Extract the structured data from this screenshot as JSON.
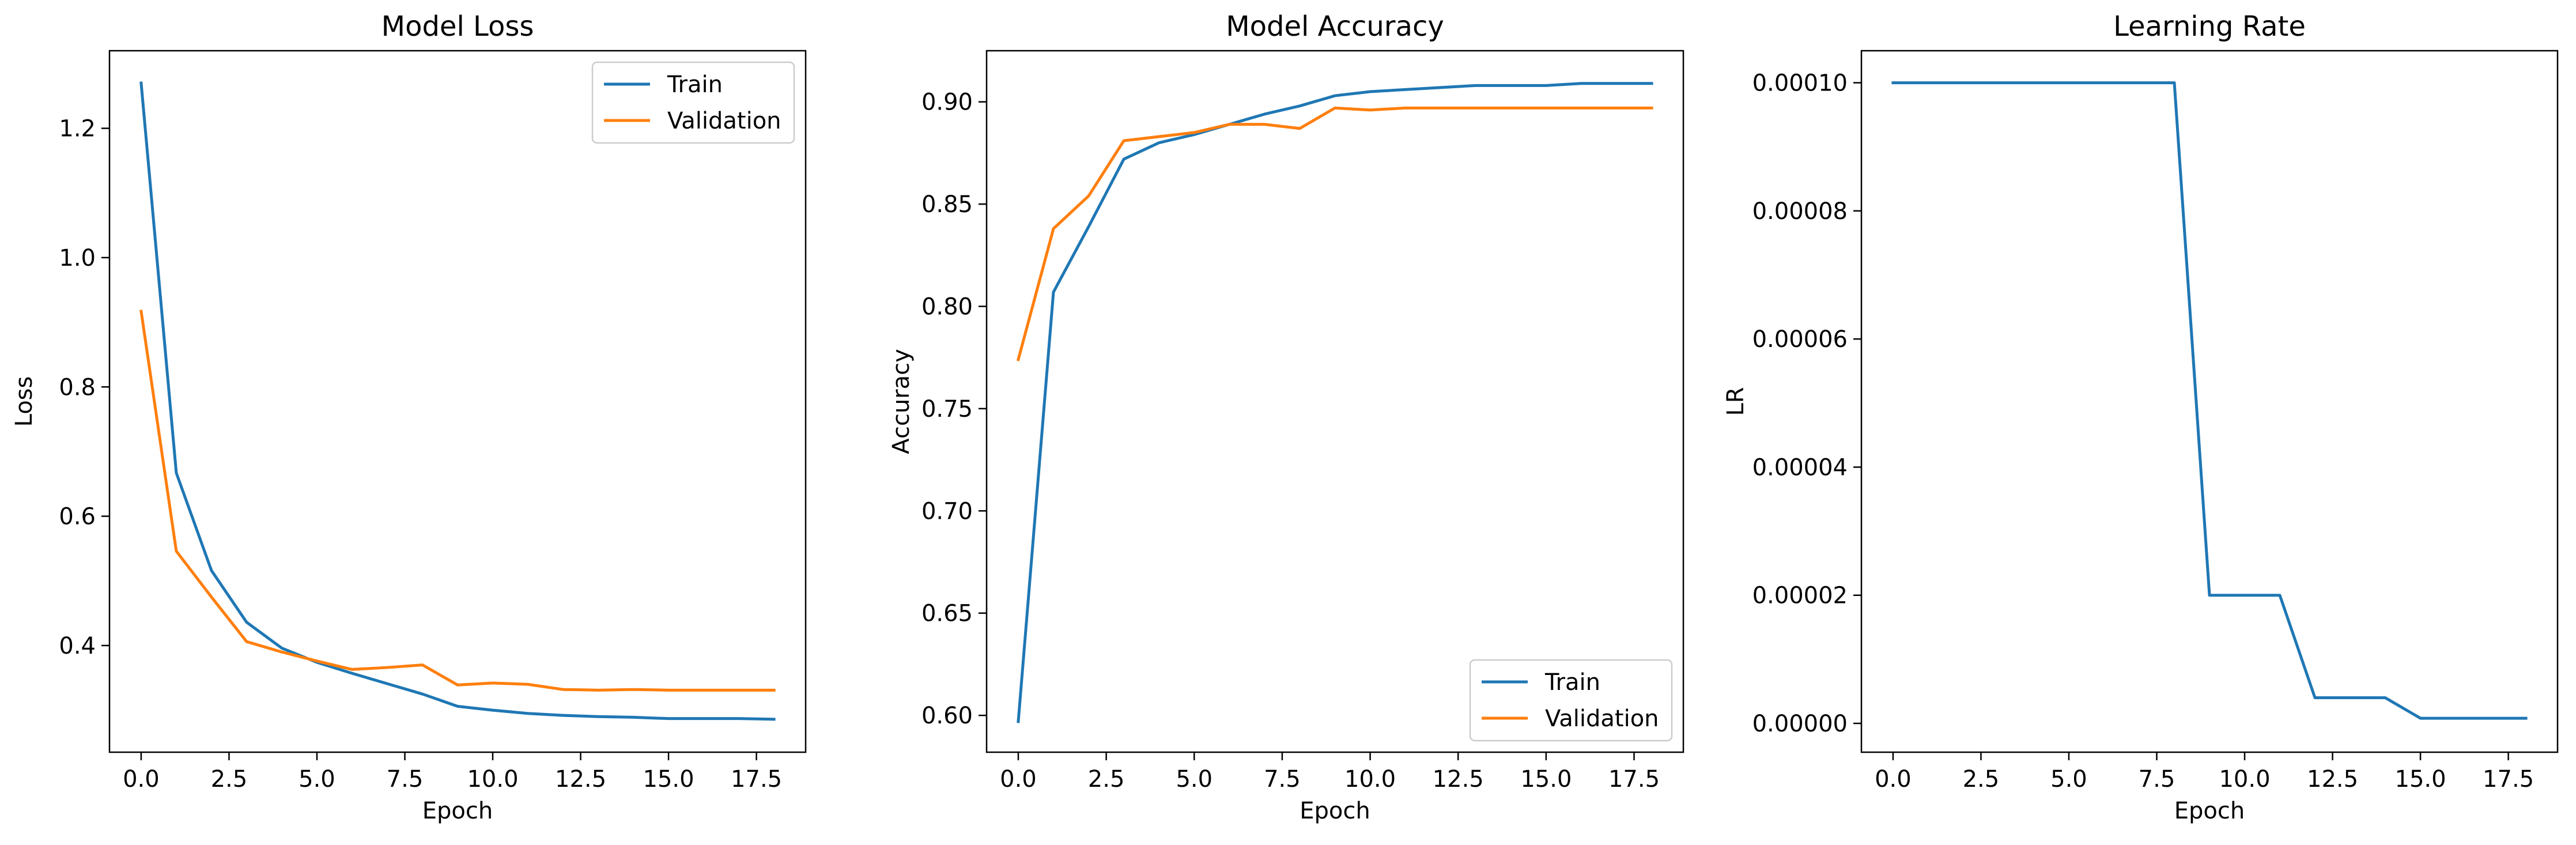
{
  "chart_data": [
    {
      "type": "line",
      "title": "Model Loss",
      "xlabel": "Epoch",
      "ylabel": "Loss",
      "xlim": [
        -0.9,
        18.9
      ],
      "ylim": [
        0.235,
        1.32
      ],
      "xticks": [
        0,
        2.5,
        5,
        7.5,
        10,
        12.5,
        15,
        17.5
      ],
      "xtick_labels": [
        "0.0",
        "2.5",
        "5.0",
        "7.5",
        "10.0",
        "12.5",
        "15.0",
        "17.5"
      ],
      "yticks": [
        0.4,
        0.6,
        0.8,
        1.0,
        1.2
      ],
      "ytick_labels": [
        "0.4",
        "0.6",
        "0.8",
        "1.0",
        "1.2"
      ],
      "grid": false,
      "legend": "upper right",
      "x": [
        0,
        1,
        2,
        3,
        4,
        5,
        6,
        7,
        8,
        9,
        10,
        11,
        12,
        13,
        14,
        15,
        16,
        17,
        18
      ],
      "series": [
        {
          "name": "Train",
          "color": "#1f77b4",
          "values": [
            1.27,
            0.667,
            0.516,
            0.436,
            0.396,
            0.374,
            0.357,
            0.341,
            0.325,
            0.306,
            0.3,
            0.295,
            0.292,
            0.29,
            0.289,
            0.287,
            0.287,
            0.287,
            0.286
          ]
        },
        {
          "name": "Validation",
          "color": "#ff7f0e",
          "values": [
            0.917,
            0.546,
            0.475,
            0.406,
            0.39,
            0.376,
            0.363,
            0.366,
            0.37,
            0.339,
            0.342,
            0.34,
            0.332,
            0.331,
            0.332,
            0.331,
            0.331,
            0.331,
            0.331
          ]
        }
      ]
    },
    {
      "type": "line",
      "title": "Model Accuracy",
      "xlabel": "Epoch",
      "ylabel": "Accuracy",
      "xlim": [
        -0.9,
        18.9
      ],
      "ylim": [
        0.582,
        0.925
      ],
      "xticks": [
        0,
        2.5,
        5,
        7.5,
        10,
        12.5,
        15,
        17.5
      ],
      "xtick_labels": [
        "0.0",
        "2.5",
        "5.0",
        "7.5",
        "10.0",
        "12.5",
        "15.0",
        "17.5"
      ],
      "yticks": [
        0.6,
        0.65,
        0.7,
        0.75,
        0.8,
        0.85,
        0.9
      ],
      "ytick_labels": [
        "0.60",
        "0.65",
        "0.70",
        "0.75",
        "0.80",
        "0.85",
        "0.90"
      ],
      "grid": false,
      "legend": "lower right",
      "x": [
        0,
        1,
        2,
        3,
        4,
        5,
        6,
        7,
        8,
        9,
        10,
        11,
        12,
        13,
        14,
        15,
        16,
        17,
        18
      ],
      "series": [
        {
          "name": "Train",
          "color": "#1f77b4",
          "values": [
            0.597,
            0.807,
            0.839,
            0.872,
            0.88,
            0.884,
            0.889,
            0.894,
            0.898,
            0.903,
            0.905,
            0.906,
            0.907,
            0.908,
            0.908,
            0.908,
            0.909,
            0.909,
            0.909
          ]
        },
        {
          "name": "Validation",
          "color": "#ff7f0e",
          "values": [
            0.774,
            0.838,
            0.854,
            0.881,
            0.883,
            0.885,
            0.889,
            0.889,
            0.887,
            0.897,
            0.896,
            0.897,
            0.897,
            0.897,
            0.897,
            0.897,
            0.897,
            0.897,
            0.897
          ]
        }
      ]
    },
    {
      "type": "line",
      "title": "Learning Rate",
      "xlabel": "Epoch",
      "ylabel": "LR",
      "xlim": [
        -0.9,
        18.9
      ],
      "ylim": [
        -4.5e-06,
        0.000105
      ],
      "xticks": [
        0,
        2.5,
        5,
        7.5,
        10,
        12.5,
        15,
        17.5
      ],
      "xtick_labels": [
        "0.0",
        "2.5",
        "5.0",
        "7.5",
        "10.0",
        "12.5",
        "15.0",
        "17.5"
      ],
      "yticks": [
        0,
        2e-05,
        4e-05,
        6e-05,
        8e-05,
        0.0001
      ],
      "ytick_labels": [
        "0.00000",
        "0.00002",
        "0.00004",
        "0.00006",
        "0.00008",
        "0.00010"
      ],
      "grid": false,
      "legend": "none",
      "x": [
        0,
        1,
        2,
        3,
        4,
        5,
        6,
        7,
        8,
        9,
        10,
        11,
        12,
        13,
        14,
        15,
        16,
        17,
        18
      ],
      "series": [
        {
          "name": "",
          "color": "#1f77b4",
          "values": [
            0.0001,
            0.0001,
            0.0001,
            0.0001,
            0.0001,
            0.0001,
            0.0001,
            0.0001,
            0.0001,
            2e-05,
            2e-05,
            2e-05,
            4e-06,
            4e-06,
            4e-06,
            8e-07,
            8e-07,
            8e-07,
            8e-07
          ]
        }
      ]
    }
  ]
}
